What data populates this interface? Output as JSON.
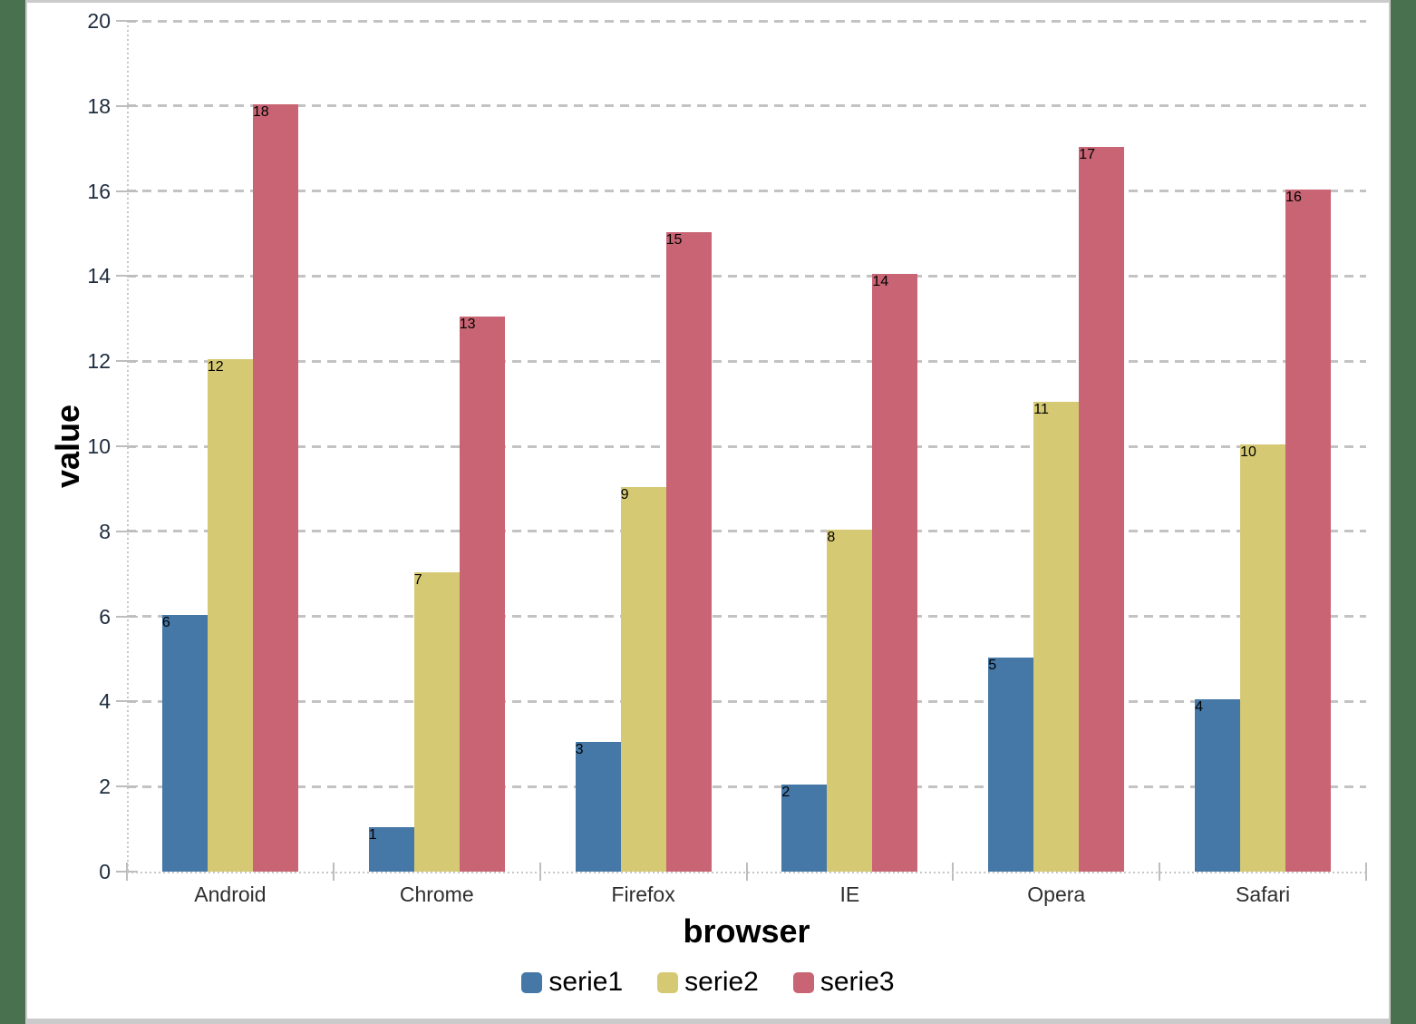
{
  "page": {
    "background_color": "#4a714f",
    "frame_border_color": "#cbcbcb",
    "canvas_background": "#ffffff"
  },
  "chart_data": {
    "type": "bar",
    "title": "",
    "xlabel": "browser",
    "ylabel": "value",
    "categories": [
      "Android",
      "Chrome",
      "Firefox",
      "IE",
      "Opera",
      "Safari"
    ],
    "series": [
      {
        "name": "serie1",
        "color": "#4577a7",
        "values": [
          6,
          1,
          3,
          2,
          5,
          4
        ]
      },
      {
        "name": "serie2",
        "color": "#d6c973",
        "values": [
          12,
          7,
          9,
          8,
          11,
          10
        ]
      },
      {
        "name": "serie3",
        "color": "#c86473",
        "values": [
          18,
          13,
          15,
          14,
          17,
          16
        ]
      }
    ],
    "ylim": [
      0,
      20
    ],
    "ytick_step": 2,
    "yticks": [
      0,
      2,
      4,
      6,
      8,
      10,
      12,
      14,
      16,
      18,
      20
    ],
    "grid": "horizontal-dashed",
    "gridline_color": "#c3c3c3",
    "axis_line_color": "#c6c6c6",
    "tick_label_color": "#1e2c3e",
    "category_label_color": "#2e2e2e",
    "axis_title_color": "#000000",
    "legend_position": "bottom",
    "legend_labels": [
      "serie1",
      "serie2",
      "serie3"
    ]
  }
}
